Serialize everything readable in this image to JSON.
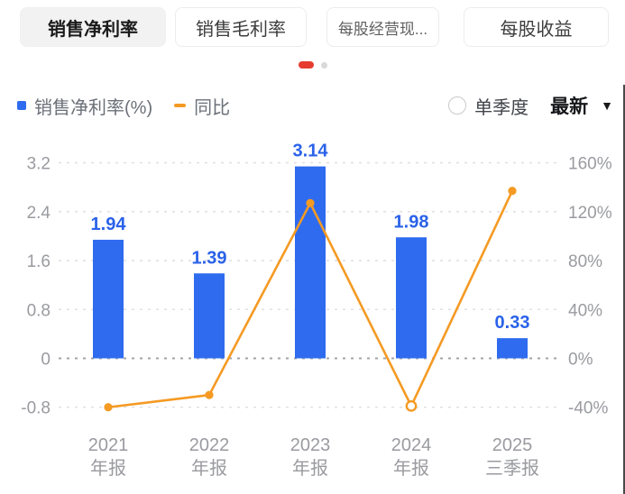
{
  "tabs": {
    "items": [
      {
        "label": "销售净利率",
        "active": true
      },
      {
        "label": "销售毛利率",
        "active": false
      },
      {
        "label": "每股经营现...",
        "active": false
      },
      {
        "label": "每股收益",
        "active": false
      }
    ]
  },
  "carousel": {
    "pages": 2,
    "active_page": 1,
    "active_color": "#E63C30",
    "inactive_color": "#D9D9D9"
  },
  "legend": {
    "bar_series_label": "销售净利率(%)",
    "line_series_label": "同比"
  },
  "controls": {
    "radio_label": "单季度",
    "radio_checked": false,
    "dropdown_value": "最新",
    "caret": "▼"
  },
  "colors": {
    "bar": "#2E6BEF",
    "line": "#F59A23",
    "value_label": "#2A62E9",
    "axis_text": "#9A9BA0",
    "grid_light": "#E1E1E3",
    "grid_zero": "#A3A3A8"
  },
  "chart_data": {
    "type": "bar",
    "title": "",
    "xlabel": "",
    "ylabel_left": "销售净利率(%)",
    "ylabel_right": "同比",
    "grid": true,
    "legend_position": "top-left",
    "categories": [
      {
        "line1": "2021",
        "line2": "年报"
      },
      {
        "line1": "2022",
        "line2": "年报"
      },
      {
        "line1": "2023",
        "line2": "年报"
      },
      {
        "line1": "2024",
        "line2": "年报"
      },
      {
        "line1": "2025",
        "line2": "三季报"
      }
    ],
    "series": [
      {
        "name": "销售净利率(%)",
        "type": "bar",
        "color": "#2E6BEF",
        "values": [
          1.94,
          1.39,
          3.14,
          1.98,
          0.33
        ],
        "value_labels": [
          "1.94",
          "1.39",
          "3.14",
          "1.98",
          "0.33"
        ]
      },
      {
        "name": "同比",
        "type": "line",
        "color": "#F59A23",
        "values": [
          -40,
          -30,
          127,
          -39,
          137
        ],
        "open_points": [
          false,
          false,
          false,
          true,
          false
        ]
      }
    ],
    "left_axis": {
      "min": -0.8,
      "max": 3.2,
      "ticks": [
        3.2,
        2.4,
        1.6,
        0.8,
        0,
        -0.8
      ],
      "tick_labels": [
        "3.2",
        "2.4",
        "1.6",
        "0.8",
        "0",
        "-0.8"
      ]
    },
    "right_axis": {
      "min": -40,
      "max": 160,
      "ticks": [
        160,
        120,
        80,
        40,
        0,
        -40
      ],
      "tick_labels": [
        "160%",
        "120%",
        "80%",
        "40%",
        "0%",
        "-40%"
      ]
    }
  }
}
